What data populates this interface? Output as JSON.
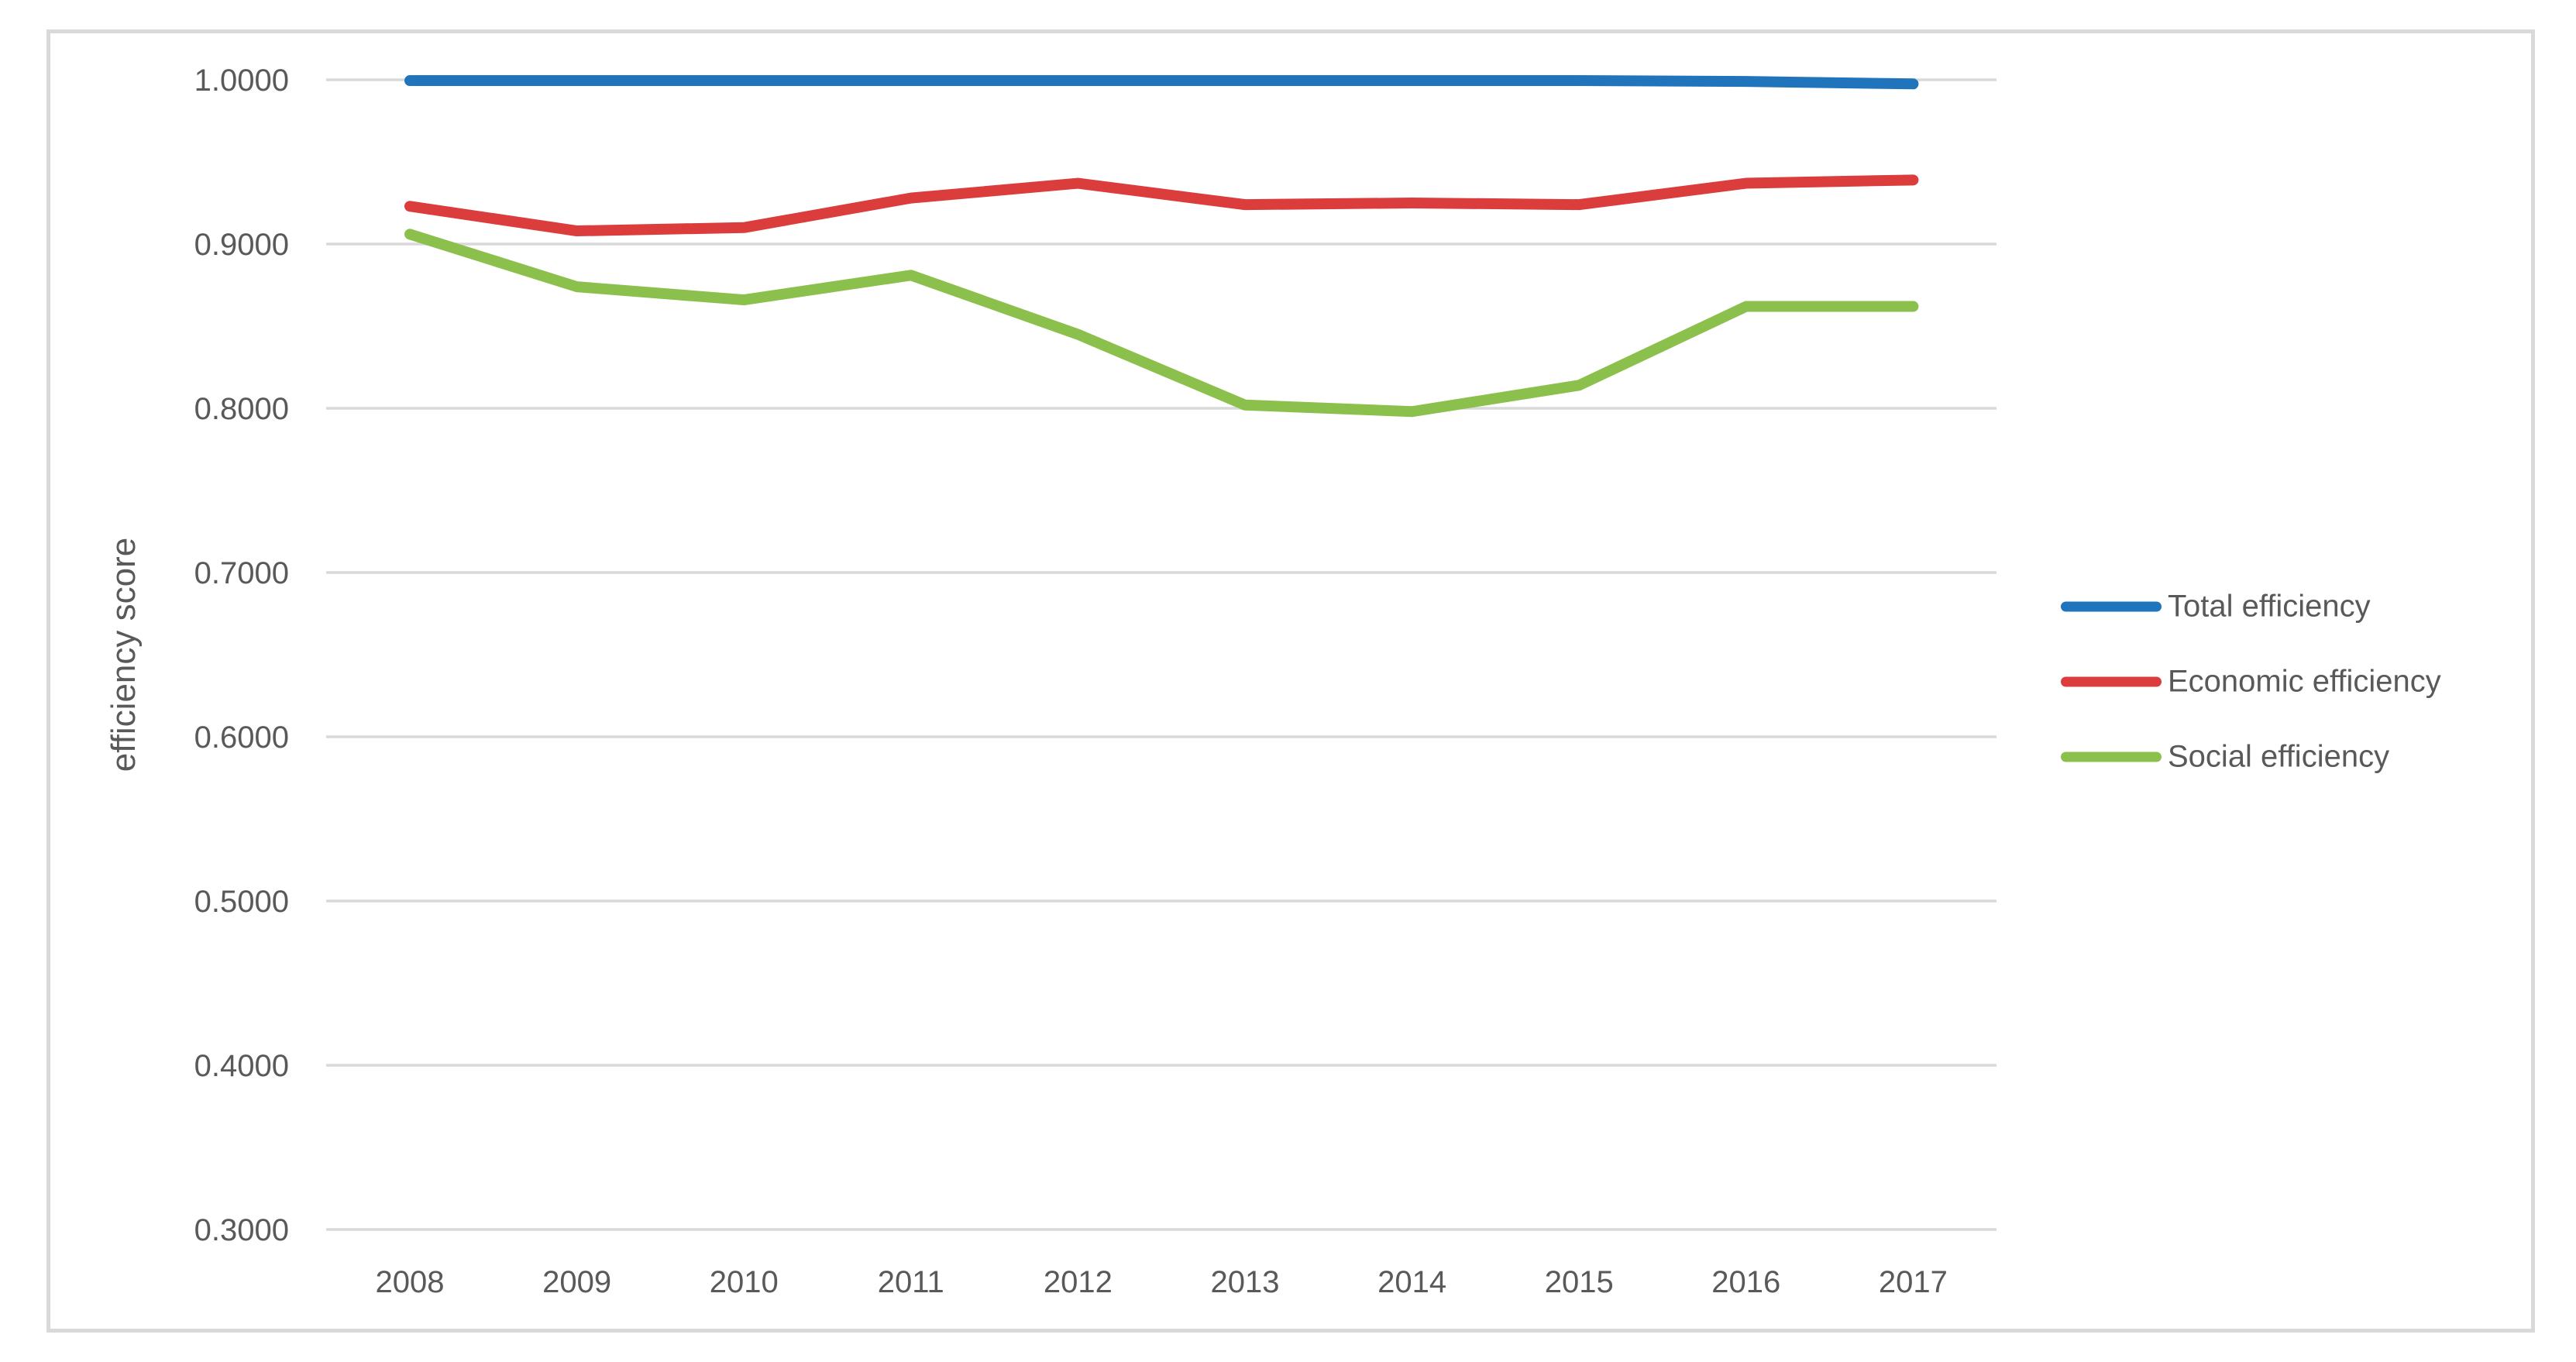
{
  "chart_data": {
    "type": "line",
    "title": "",
    "xlabel": "",
    "ylabel": "efficiency score",
    "categories": [
      "2008",
      "2009",
      "2010",
      "2011",
      "2012",
      "2013",
      "2014",
      "2015",
      "2016",
      "2017"
    ],
    "series": [
      {
        "name": "Total efficiency",
        "color": "#1F74BC",
        "values": [
          0.9995,
          0.9995,
          0.9995,
          0.9995,
          0.9995,
          0.9995,
          0.9995,
          0.9995,
          0.999,
          0.9975
        ]
      },
      {
        "name": "Economic efficiency",
        "color": "#DB3C3C",
        "values": [
          0.923,
          0.908,
          0.91,
          0.928,
          0.937,
          0.924,
          0.925,
          0.924,
          0.937,
          0.939
        ]
      },
      {
        "name": "Social efficiency",
        "color": "#8CC04D",
        "values": [
          0.906,
          0.874,
          0.866,
          0.881,
          0.845,
          0.802,
          0.798,
          0.814,
          0.862,
          0.862
        ]
      }
    ],
    "y_ticks": [
      "1.0000",
      "0.9000",
      "0.8000",
      "0.7000",
      "0.6000",
      "0.5000",
      "0.4000",
      "0.3000"
    ],
    "ylim": [
      0.3,
      1.0
    ],
    "grid": true,
    "legend_position": "right",
    "colors": {
      "gridline": "#D9D9D9",
      "axis_text": "#595959",
      "frame_border": "#D9D9D9",
      "background": "#FFFFFF"
    }
  }
}
